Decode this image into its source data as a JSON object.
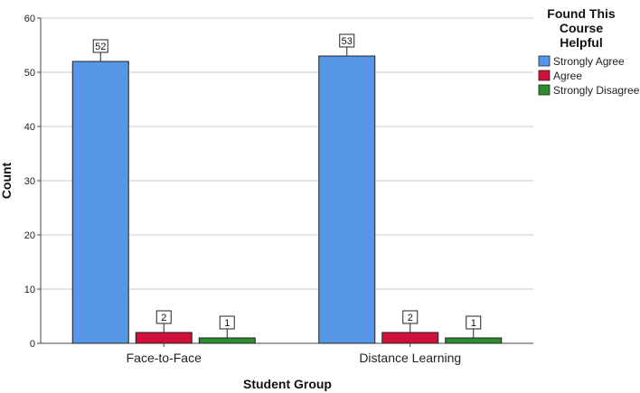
{
  "chart_data": {
    "type": "bar",
    "categories": [
      "Face-to-Face",
      "Distance Learning"
    ],
    "series": [
      {
        "name": "Strongly Agree",
        "values": [
          52,
          53
        ],
        "color": "#5596e6"
      },
      {
        "name": "Agree",
        "values": [
          2,
          2
        ],
        "color": "#d0103a"
      },
      {
        "name": "Strongly Disagree",
        "values": [
          1,
          1
        ],
        "color": "#2c8d2e"
      }
    ],
    "xlabel": "Student Group",
    "ylabel": "Count",
    "ylim": [
      0,
      60
    ],
    "yticks": [
      0,
      10,
      20,
      30,
      40,
      50,
      60
    ],
    "legend_title": [
      "Found This",
      "Course",
      "Helpful"
    ],
    "legend_position": "top-right",
    "grid": true,
    "data_labels": true
  }
}
